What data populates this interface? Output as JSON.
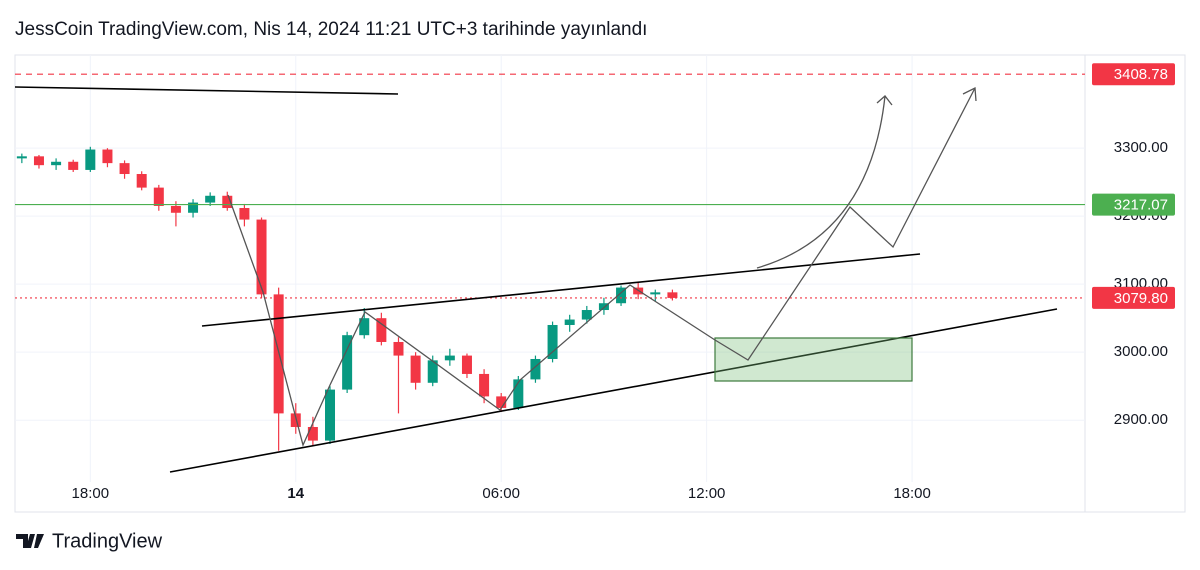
{
  "header": {
    "title": "JessCoin TradingView.com, Nis 14, 2024 11:21 UTC+3 tarihinde yayınlandı"
  },
  "footer": {
    "brand": "TradingView"
  },
  "chart_data": {
    "type": "candlestick",
    "up_color": "#089981",
    "down_color": "#f23645",
    "x": [
      16.0,
      16.5,
      17.0,
      17.5,
      18.0,
      18.5,
      19.0,
      19.5,
      20.0,
      20.5,
      21.0,
      21.5,
      22.0,
      22.5,
      23.0,
      23.5,
      24.0,
      24.5,
      25.0,
      25.5,
      26.0,
      26.5,
      27.0,
      27.5,
      28.0,
      28.5,
      29.0,
      29.5,
      30.0,
      30.5,
      31.0,
      31.5,
      32.0,
      32.5,
      33.0,
      33.5,
      34.0,
      34.5,
      35.0
    ],
    "open": [
      3285,
      3288,
      3275,
      3280,
      3268,
      3298,
      3278,
      3262,
      3242,
      3215,
      3205,
      3220,
      3230,
      3212,
      3195,
      3085,
      2910,
      2890,
      2870,
      2945,
      3025,
      3050,
      3015,
      2995,
      2955,
      2988,
      2995,
      2968,
      2935,
      2918,
      2960,
      2990,
      3040,
      3048,
      3062,
      3072,
      3095,
      3085,
      3088
    ],
    "high": [
      3292,
      3290,
      3285,
      3283,
      3302,
      3300,
      3282,
      3266,
      3246,
      3222,
      3225,
      3235,
      3236,
      3218,
      3198,
      3095,
      2925,
      2905,
      2950,
      3030,
      3065,
      3058,
      3022,
      3000,
      2995,
      3005,
      2998,
      2975,
      2940,
      2965,
      2995,
      3045,
      3055,
      3068,
      3080,
      3098,
      3102,
      3092,
      3092
    ],
    "low": [
      3278,
      3270,
      3268,
      3265,
      3265,
      3272,
      3255,
      3238,
      3208,
      3185,
      3198,
      3215,
      3208,
      3185,
      3080,
      2855,
      2880,
      2862,
      2865,
      2940,
      3020,
      3010,
      2910,
      2945,
      2950,
      2980,
      2962,
      2925,
      2912,
      2915,
      2955,
      2985,
      3030,
      3042,
      3055,
      3068,
      3078,
      3075,
      3076
    ],
    "close": [
      3288,
      3275,
      3280,
      3268,
      3298,
      3278,
      3262,
      3242,
      3215,
      3205,
      3220,
      3230,
      3212,
      3195,
      3085,
      2910,
      2890,
      2870,
      2945,
      3025,
      3050,
      3015,
      2995,
      2955,
      2988,
      2995,
      2968,
      2935,
      2918,
      2960,
      2990,
      3040,
      3048,
      3062,
      3072,
      3095,
      3085,
      3088,
      3079.8
    ],
    "xlim": [
      15.8,
      47.05
    ],
    "xticks": [
      {
        "value": 18,
        "label": "18:00"
      },
      {
        "value": 24,
        "label": "14"
      },
      {
        "value": 30,
        "label": "06:00"
      },
      {
        "value": 36,
        "label": "12:00"
      },
      {
        "value": 42,
        "label": "18:00"
      }
    ],
    "ylim": [
      2765,
      3437
    ],
    "yticks": [
      {
        "value": 2900,
        "label": "2900.00"
      },
      {
        "value": 3000,
        "label": "3000.00"
      },
      {
        "value": 3100,
        "label": "3100.00"
      },
      {
        "value": 3200,
        "label": "3200.00"
      },
      {
        "value": 3300,
        "label": "3300.00"
      }
    ],
    "price_lines": [
      {
        "value": 3408.78,
        "label": "3408.78",
        "color": "#f23645",
        "style": "dashed"
      },
      {
        "value": 3217.07,
        "label": "3217.07",
        "color": "#4caf50",
        "style": "solid"
      },
      {
        "value": 3079.8,
        "label": "3079.80",
        "color": "#f23645",
        "style": "dotted"
      }
    ]
  }
}
